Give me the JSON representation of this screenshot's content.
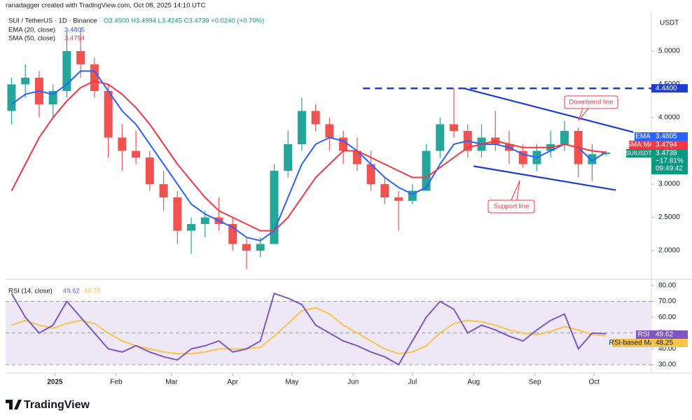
{
  "header": {
    "credit": "ranadagger created with TradingView.com, Oct 08, 2025 14:10 UTC"
  },
  "footer": {
    "logo": "TradingView"
  },
  "chart_data": [
    {
      "type": "candlestick",
      "symbol": "SUI / TetherUS · 1D · Binance",
      "ohlc": "O3.4500 H3.4994 L3.4245 C3.4739 +0.0240 (+0.70%)",
      "currency": "USDT",
      "x": [
        3,
        10,
        17,
        24,
        31,
        38,
        45,
        52,
        59,
        66,
        73,
        80,
        87,
        94,
        101,
        108,
        115,
        122,
        129,
        136,
        143,
        150,
        157,
        164,
        171,
        178,
        185,
        192,
        199,
        206,
        213,
        220,
        227,
        234,
        241,
        248,
        255,
        262,
        269,
        276,
        283,
        290,
        297,
        304
      ],
      "open": [
        4.1,
        4.5,
        4.6,
        4.2,
        4.4,
        5.0,
        4.8,
        4.4,
        3.7,
        3.5,
        3.4,
        3.0,
        2.8,
        2.3,
        2.4,
        2.5,
        2.4,
        2.1,
        2.0,
        2.1,
        3.2,
        3.6,
        4.1,
        3.9,
        3.7,
        3.5,
        3.3,
        3.0,
        2.8,
        2.75,
        2.9,
        3.5,
        3.9,
        3.8,
        3.5,
        3.7,
        3.6,
        3.5,
        3.3,
        3.5,
        3.6,
        3.8,
        3.3,
        3.45
      ],
      "high": [
        4.6,
        4.8,
        4.7,
        4.5,
        5.3,
        5.35,
        4.9,
        4.5,
        3.9,
        3.8,
        3.5,
        3.2,
        2.9,
        2.5,
        2.6,
        2.8,
        2.5,
        2.2,
        2.2,
        3.3,
        3.8,
        4.3,
        4.2,
        4.0,
        3.8,
        3.7,
        3.5,
        3.1,
        2.9,
        3.0,
        3.6,
        4.0,
        4.44,
        3.9,
        3.9,
        4.1,
        3.8,
        3.6,
        3.6,
        3.8,
        3.95,
        3.85,
        3.6,
        3.4994
      ],
      "low": [
        3.9,
        4.3,
        4.0,
        4.0,
        4.3,
        4.6,
        4.3,
        3.4,
        3.2,
        3.3,
        2.9,
        2.6,
        2.1,
        1.95,
        2.2,
        2.3,
        2.0,
        1.72,
        1.9,
        2.1,
        3.1,
        3.5,
        3.8,
        3.5,
        3.3,
        3.2,
        2.9,
        2.7,
        2.3,
        2.7,
        2.9,
        3.4,
        3.7,
        3.4,
        3.4,
        3.5,
        3.3,
        3.25,
        3.2,
        3.4,
        3.5,
        3.1,
        3.05,
        3.4245
      ],
      "close": [
        4.5,
        4.6,
        4.2,
        4.4,
        5.0,
        4.8,
        4.4,
        3.7,
        3.5,
        3.4,
        3.0,
        2.8,
        2.3,
        2.4,
        2.5,
        2.4,
        2.1,
        2.0,
        2.1,
        3.2,
        3.6,
        4.1,
        3.9,
        3.7,
        3.5,
        3.3,
        3.0,
        2.8,
        2.75,
        2.9,
        3.5,
        3.9,
        3.8,
        3.5,
        3.7,
        3.6,
        3.5,
        3.3,
        3.5,
        3.6,
        3.8,
        3.3,
        3.45,
        3.4739
      ],
      "up_color": "#26a69a",
      "down_color": "#ef5350",
      "series": [
        {
          "name": "EMA (20, close)",
          "badge": "EMA",
          "color": "#2962ff",
          "values": [
            4.2,
            4.35,
            4.4,
            4.35,
            4.5,
            4.7,
            4.7,
            4.4,
            4.1,
            3.9,
            3.6,
            3.3,
            3.0,
            2.7,
            2.55,
            2.45,
            2.35,
            2.2,
            2.15,
            2.3,
            2.8,
            3.3,
            3.6,
            3.7,
            3.65,
            3.5,
            3.3,
            3.1,
            2.95,
            2.85,
            2.95,
            3.3,
            3.6,
            3.65,
            3.6,
            3.6,
            3.55,
            3.45,
            3.4,
            3.5,
            3.6,
            3.55,
            3.35,
            3.4805
          ]
        },
        {
          "name": "SMA (50, close)",
          "badge": "SMA:MA",
          "color": "#f23645",
          "values": [
            2.9,
            3.3,
            3.7,
            4.0,
            4.25,
            4.45,
            4.55,
            4.5,
            4.35,
            4.15,
            3.9,
            3.6,
            3.3,
            3.05,
            2.8,
            2.6,
            2.5,
            2.4,
            2.3,
            2.3,
            2.5,
            2.8,
            3.1,
            3.3,
            3.5,
            3.5,
            3.4,
            3.3,
            3.2,
            3.1,
            3.1,
            3.25,
            3.4,
            3.55,
            3.6,
            3.65,
            3.6,
            3.55,
            3.55,
            3.55,
            3.6,
            3.55,
            3.5,
            3.4794
          ]
        }
      ],
      "last_badge": {
        "symbol": "SUIUSDT",
        "change": "−17.81%",
        "countdown": "09:49:42",
        "color": "#089981"
      },
      "xlim": [
        0,
        327
      ],
      "ylim": [
        1.58,
        5.61
      ],
      "yticks": [
        {
          "value": 2,
          "label": "2.0000"
        },
        {
          "value": 2.5,
          "label": "2.5000"
        },
        {
          "value": 3,
          "label": "3.0000"
        },
        {
          "value": 4,
          "label": "4.0000"
        },
        {
          "value": 4.5,
          "label": "4.5000"
        },
        {
          "value": 5,
          "label": "5.0000"
        }
      ],
      "xticks": [
        {
          "value": 25,
          "label": "2025"
        },
        {
          "value": 56,
          "label": "Feb"
        },
        {
          "value": 84,
          "label": "Mar"
        },
        {
          "value": 115,
          "label": "Apr"
        },
        {
          "value": 145,
          "label": "May"
        },
        {
          "value": 176,
          "label": "Jun"
        },
        {
          "value": 206,
          "label": "Jul"
        },
        {
          "value": 237,
          "label": "Aug"
        },
        {
          "value": 268,
          "label": "Sep"
        },
        {
          "value": 298,
          "label": "Oct"
        }
      ],
      "grid": false,
      "hline": {
        "value": 4.44,
        "label": "4.4400",
        "x": 181,
        "color": "#1e3ccf"
      },
      "trendlines": [
        {
          "label": "Downtrend line",
          "x": [
            232,
            318
          ],
          "y": [
            4.44,
            3.78
          ]
        },
        {
          "label": "Support line",
          "x": [
            237,
            309
          ],
          "y": [
            3.27,
            2.91
          ]
        }
      ]
    },
    {
      "type": "line",
      "title": "RSI (14, close)",
      "x": [
        3,
        10,
        17,
        24,
        31,
        38,
        45,
        52,
        59,
        66,
        73,
        80,
        87,
        94,
        101,
        108,
        115,
        122,
        129,
        136,
        143,
        150,
        157,
        164,
        171,
        178,
        185,
        192,
        199,
        206,
        213,
        220,
        227,
        234,
        241,
        248,
        255,
        262,
        269,
        276,
        283,
        290,
        297,
        304
      ],
      "series": [
        {
          "name": "RSI",
          "color": "#7e57c2",
          "values": [
            75,
            60,
            50,
            55,
            70,
            60,
            50,
            40,
            38,
            42,
            38,
            35,
            33,
            40,
            42,
            45,
            38,
            40,
            45,
            75,
            72,
            68,
            55,
            50,
            45,
            42,
            38,
            35,
            30,
            45,
            60,
            70,
            65,
            50,
            55,
            52,
            48,
            45,
            52,
            58,
            62,
            40,
            50,
            49.62
          ]
        },
        {
          "name": "RSI-based MA",
          "color": "#f7c549",
          "values": [
            55,
            58,
            55,
            53,
            56,
            58,
            56,
            50,
            45,
            42,
            40,
            38,
            37,
            37,
            38,
            40,
            40,
            40,
            41,
            48,
            56,
            64,
            66,
            62,
            55,
            50,
            45,
            40,
            37,
            38,
            42,
            50,
            56,
            58,
            57,
            55,
            52,
            50,
            49,
            51,
            54,
            52,
            49,
            48.25
          ]
        }
      ],
      "xlim": [
        0,
        327
      ],
      "ylim": [
        24.7,
        83.5
      ],
      "yticks": [
        {
          "value": 30,
          "label": "30.00"
        },
        {
          "value": 40,
          "label": "40.00"
        },
        {
          "value": 50,
          "label": "50.00"
        },
        {
          "value": 60,
          "label": "60.00"
        },
        {
          "value": 70,
          "label": "70.00"
        },
        {
          "value": 80,
          "label": "80.00"
        }
      ],
      "band": [
        30,
        70
      ],
      "band_color": "#ede7f6"
    }
  ]
}
